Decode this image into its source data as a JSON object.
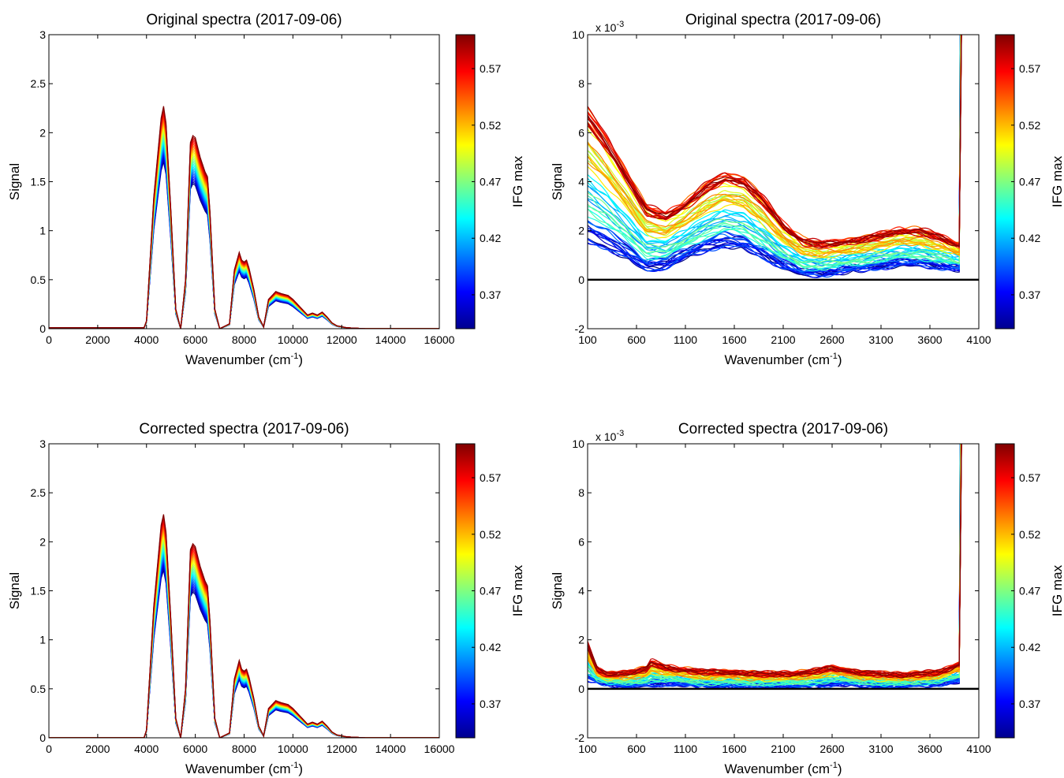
{
  "figure": {
    "colormap": "jet",
    "axis_color": "#000000",
    "zero_line_color": "#000000"
  },
  "chart_data": [
    {
      "type": "line",
      "title": "Original spectra (2017-09-06)",
      "xlabel": "Wavenumber (cm",
      "xlabel_sup": "-1",
      "xlabel_end": ")",
      "ylabel": "Signal",
      "xlim": [
        0,
        16000
      ],
      "ylim": [
        0,
        3
      ],
      "xticks": [
        0,
        2000,
        4000,
        6000,
        8000,
        10000,
        12000,
        14000,
        16000
      ],
      "xtick_labels": [
        "0",
        "2000",
        "4000",
        "6000",
        "8000",
        "10000",
        "12000",
        "14000",
        "16000"
      ],
      "yticks": [
        0,
        0.5,
        1,
        1.5,
        2,
        2.5,
        3
      ],
      "ytick_labels": [
        "0",
        "0.5",
        "1",
        "1.5",
        "2",
        "2.5",
        "3"
      ],
      "series_count": 30,
      "color_range": [
        0.34,
        0.6
      ],
      "spectrum": {
        "x": [
          0,
          3900,
          4000,
          4300,
          4600,
          4700,
          4800,
          5000,
          5200,
          5400,
          5600,
          5800,
          5900,
          6000,
          6200,
          6400,
          6500,
          6600,
          6800,
          7000,
          7400,
          7600,
          7800,
          7900,
          8000,
          8100,
          8200,
          8400,
          8600,
          8800,
          9000,
          9300,
          9500,
          9800,
          10000,
          10300,
          10600,
          10800,
          11000,
          11200,
          11400,
          11600,
          11800,
          12200,
          13000,
          16000
        ],
        "y": [
          0.01,
          0.01,
          0.08,
          1.35,
          2.15,
          2.27,
          2.1,
          1.2,
          0.2,
          0.0,
          0.5,
          1.9,
          1.97,
          1.95,
          1.75,
          1.6,
          1.55,
          1.2,
          0.2,
          0.0,
          0.05,
          0.6,
          0.78,
          0.7,
          0.68,
          0.7,
          0.62,
          0.4,
          0.12,
          0.02,
          0.3,
          0.38,
          0.36,
          0.34,
          0.3,
          0.22,
          0.14,
          0.16,
          0.14,
          0.17,
          0.12,
          0.06,
          0.03,
          0.01,
          0.0,
          0.0
        ]
      },
      "min_scale": 0.75,
      "zero_line": false,
      "colorbar": {
        "label": "IFG max",
        "ticks": [
          0.37,
          0.42,
          0.47,
          0.52,
          0.57
        ],
        "tick_labels": [
          "0.37",
          "0.42",
          "0.47",
          "0.52",
          "0.57"
        ],
        "range": [
          0.34,
          0.6
        ]
      }
    },
    {
      "type": "line",
      "title": "Original spectra (2017-09-06)",
      "xlabel": "Wavenumber (cm",
      "xlabel_sup": "-1",
      "xlabel_end": ")",
      "ylabel": "Signal",
      "multiplier": "x 10",
      "multiplier_exp": "-3",
      "xlim": [
        100,
        4100
      ],
      "ylim": [
        -2,
        10
      ],
      "xticks": [
        100,
        600,
        1100,
        1600,
        2100,
        2600,
        3100,
        3600,
        4100
      ],
      "xtick_labels": [
        "100",
        "600",
        "1100",
        "1600",
        "2100",
        "2600",
        "3100",
        "3600",
        "4100"
      ],
      "yticks": [
        -2,
        0,
        2,
        4,
        6,
        8,
        10
      ],
      "ytick_labels": [
        "-2",
        "0",
        "2",
        "4",
        "6",
        "8",
        "10"
      ],
      "series_count": 60,
      "color_range": [
        0.34,
        0.6
      ],
      "cutoff": 3900,
      "low": {
        "x": [
          100,
          300,
          500,
          700,
          900,
          1100,
          1300,
          1500,
          1700,
          1900,
          2100,
          2300,
          2500,
          2700,
          2900,
          3100,
          3300,
          3500,
          3700,
          3890
        ],
        "y": [
          1.6,
          1.3,
          0.9,
          0.4,
          0.5,
          0.9,
          1.2,
          1.4,
          1.3,
          0.9,
          0.5,
          0.2,
          0.2,
          0.3,
          0.4,
          0.5,
          0.6,
          0.6,
          0.5,
          0.4
        ]
      },
      "high": {
        "x": [
          100,
          300,
          500,
          700,
          900,
          1100,
          1300,
          1500,
          1700,
          1900,
          2100,
          2300,
          2500,
          2700,
          2900,
          3100,
          3300,
          3500,
          3700,
          3890
        ],
        "y": [
          8.2,
          6.8,
          5.2,
          3.6,
          3.2,
          3.7,
          4.5,
          5.0,
          4.8,
          3.9,
          2.7,
          2.0,
          1.8,
          1.9,
          2.0,
          2.2,
          2.4,
          2.4,
          2.1,
          1.7
        ]
      },
      "zero_line": true,
      "colorbar": {
        "label": "IFG max",
        "ticks": [
          0.37,
          0.42,
          0.47,
          0.52,
          0.57
        ],
        "tick_labels": [
          "0.37",
          "0.42",
          "0.47",
          "0.52",
          "0.57"
        ],
        "range": [
          0.34,
          0.6
        ]
      }
    },
    {
      "type": "line",
      "title": "Corrected spectra (2017-09-06)",
      "xlabel": "Wavenumber (cm",
      "xlabel_sup": "-1",
      "xlabel_end": ")",
      "ylabel": "Signal",
      "xlim": [
        0,
        16000
      ],
      "ylim": [
        0,
        3
      ],
      "xticks": [
        0,
        2000,
        4000,
        6000,
        8000,
        10000,
        12000,
        14000,
        16000
      ],
      "xtick_labels": [
        "0",
        "2000",
        "4000",
        "6000",
        "8000",
        "10000",
        "12000",
        "14000",
        "16000"
      ],
      "yticks": [
        0,
        0.5,
        1,
        1.5,
        2,
        2.5,
        3
      ],
      "ytick_labels": [
        "0",
        "0.5",
        "1",
        "1.5",
        "2",
        "2.5",
        "3"
      ],
      "series_count": 30,
      "color_range": [
        0.34,
        0.6
      ],
      "spectrum": {
        "x": [
          0,
          3900,
          4000,
          4300,
          4600,
          4700,
          4800,
          5000,
          5200,
          5400,
          5600,
          5800,
          5900,
          6000,
          6200,
          6400,
          6500,
          6600,
          6800,
          7000,
          7400,
          7600,
          7800,
          7900,
          8000,
          8100,
          8200,
          8400,
          8600,
          8800,
          9000,
          9300,
          9500,
          9800,
          10000,
          10300,
          10600,
          10800,
          11000,
          11200,
          11400,
          11600,
          11800,
          12200,
          13000,
          16000
        ],
        "y": [
          0.0,
          0.0,
          0.08,
          1.35,
          2.17,
          2.28,
          2.1,
          1.2,
          0.2,
          0.0,
          0.5,
          1.92,
          1.98,
          1.95,
          1.75,
          1.6,
          1.55,
          1.2,
          0.2,
          0.0,
          0.05,
          0.6,
          0.79,
          0.7,
          0.68,
          0.7,
          0.62,
          0.4,
          0.12,
          0.02,
          0.3,
          0.38,
          0.36,
          0.34,
          0.3,
          0.22,
          0.14,
          0.16,
          0.14,
          0.17,
          0.12,
          0.06,
          0.03,
          0.01,
          0.0,
          0.0
        ]
      },
      "min_scale": 0.75,
      "zero_line": false,
      "colorbar": {
        "label": "IFG max",
        "ticks": [
          0.37,
          0.42,
          0.47,
          0.52,
          0.57
        ],
        "tick_labels": [
          "0.37",
          "0.42",
          "0.47",
          "0.52",
          "0.57"
        ],
        "range": [
          0.34,
          0.6
        ]
      }
    },
    {
      "type": "line",
      "title": "Corrected spectra (2017-09-06)",
      "xlabel": "Wavenumber (cm",
      "xlabel_sup": "-1",
      "xlabel_end": ")",
      "ylabel": "Signal",
      "multiplier": "x 10",
      "multiplier_exp": "-3",
      "xlim": [
        100,
        4100
      ],
      "ylim": [
        -2,
        10
      ],
      "xticks": [
        100,
        600,
        1100,
        1600,
        2100,
        2600,
        3100,
        3600,
        4100
      ],
      "xtick_labels": [
        "100",
        "600",
        "1100",
        "1600",
        "2100",
        "2600",
        "3100",
        "3600",
        "4100"
      ],
      "yticks": [
        -2,
        0,
        2,
        4,
        6,
        8,
        10
      ],
      "ytick_labels": [
        "-2",
        "0",
        "2",
        "4",
        "6",
        "8",
        "10"
      ],
      "series_count": 60,
      "color_range": [
        0.34,
        0.6
      ],
      "cutoff": 3900,
      "low": {
        "x": [
          100,
          300,
          500,
          700,
          900,
          1100,
          1300,
          1500,
          1700,
          1900,
          2100,
          2300,
          2500,
          2700,
          2900,
          3100,
          3300,
          3500,
          3700,
          3890
        ],
        "y": [
          0.4,
          0.2,
          0.1,
          0.15,
          0.2,
          0.15,
          0.1,
          0.1,
          0.1,
          0.1,
          0.1,
          0.1,
          0.15,
          0.2,
          0.15,
          0.1,
          0.1,
          0.15,
          0.2,
          0.3
        ]
      },
      "high": {
        "x": [
          100,
          200,
          300,
          500,
          700,
          750,
          900,
          1100,
          1300,
          1500,
          1700,
          1900,
          2100,
          2300,
          2500,
          2600,
          2700,
          2900,
          3100,
          3300,
          3500,
          3700,
          3890
        ],
        "y": [
          2.2,
          0.9,
          0.7,
          0.8,
          1.0,
          1.35,
          1.05,
          0.95,
          0.85,
          0.85,
          0.8,
          0.75,
          0.75,
          0.8,
          0.95,
          1.05,
          0.95,
          0.8,
          0.75,
          0.7,
          0.75,
          0.8,
          1.2
        ]
      },
      "zero_line": true,
      "colorbar": {
        "label": "IFG max",
        "ticks": [
          0.37,
          0.42,
          0.47,
          0.52,
          0.57
        ],
        "tick_labels": [
          "0.37",
          "0.42",
          "0.47",
          "0.52",
          "0.57"
        ],
        "range": [
          0.34,
          0.6
        ]
      }
    }
  ]
}
